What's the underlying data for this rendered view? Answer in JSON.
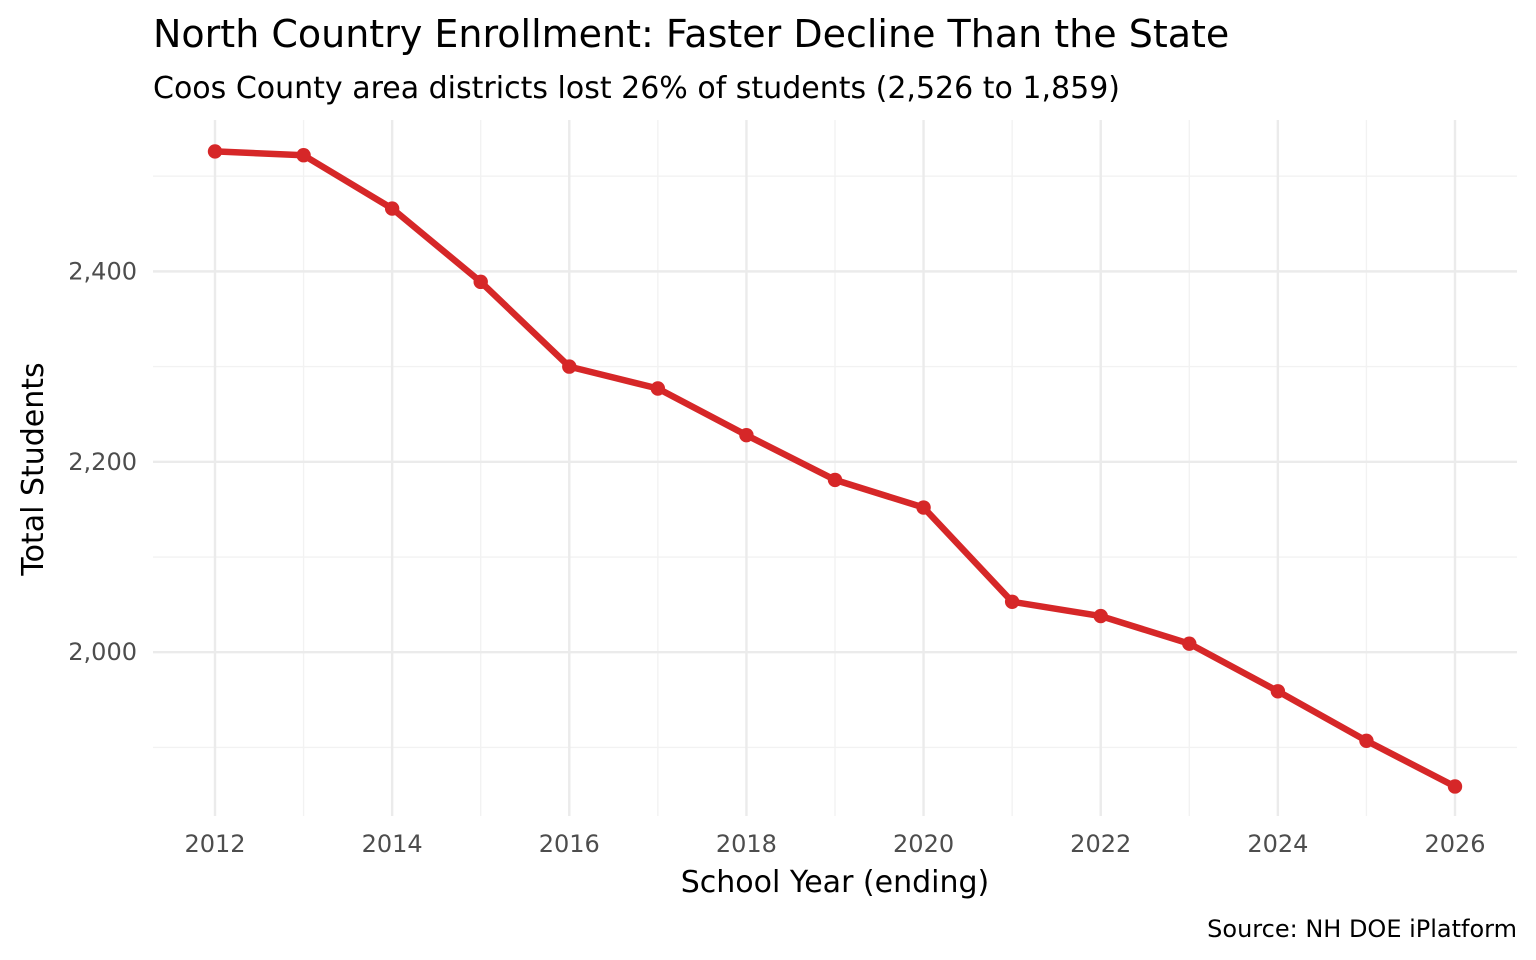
{
  "chart_data": {
    "type": "line",
    "title": "North Country Enrollment: Faster Decline Than the State",
    "subtitle": "Coos County area districts lost 26% of students (2,526 to 1,859)",
    "xlabel": "School Year (ending)",
    "ylabel": "Total Students",
    "caption": "Source: NH DOE iPlatform",
    "x": [
      2012,
      2013,
      2014,
      2015,
      2016,
      2017,
      2018,
      2019,
      2020,
      2021,
      2022,
      2023,
      2024,
      2025,
      2026
    ],
    "series": [
      {
        "name": "Coos County area districts",
        "values": [
          2526,
          2522,
          2466,
          2389,
          2300,
          2277,
          2228,
          2181,
          2152,
          2053,
          2038,
          2009,
          1959,
          1907,
          1859
        ],
        "color": "#d62728"
      }
    ],
    "xlim": [
      2011.3,
      2026.7
    ],
    "ylim": [
      1828,
      2559
    ],
    "x_ticks": [
      2012,
      2014,
      2016,
      2018,
      2020,
      2022,
      2024,
      2026
    ],
    "x_tick_labels": [
      "2012",
      "2014",
      "2016",
      "2018",
      "2020",
      "2022",
      "2024",
      "2026"
    ],
    "x_minor_ticks": [
      2013,
      2015,
      2017,
      2019,
      2021,
      2023,
      2025
    ],
    "y_ticks": [
      2000,
      2200,
      2400
    ],
    "y_tick_labels": [
      "2,000",
      "2,200",
      "2,400"
    ],
    "y_minor_ticks": [
      1900,
      2100,
      2300,
      2500
    ],
    "grid": true,
    "legend": "none"
  }
}
